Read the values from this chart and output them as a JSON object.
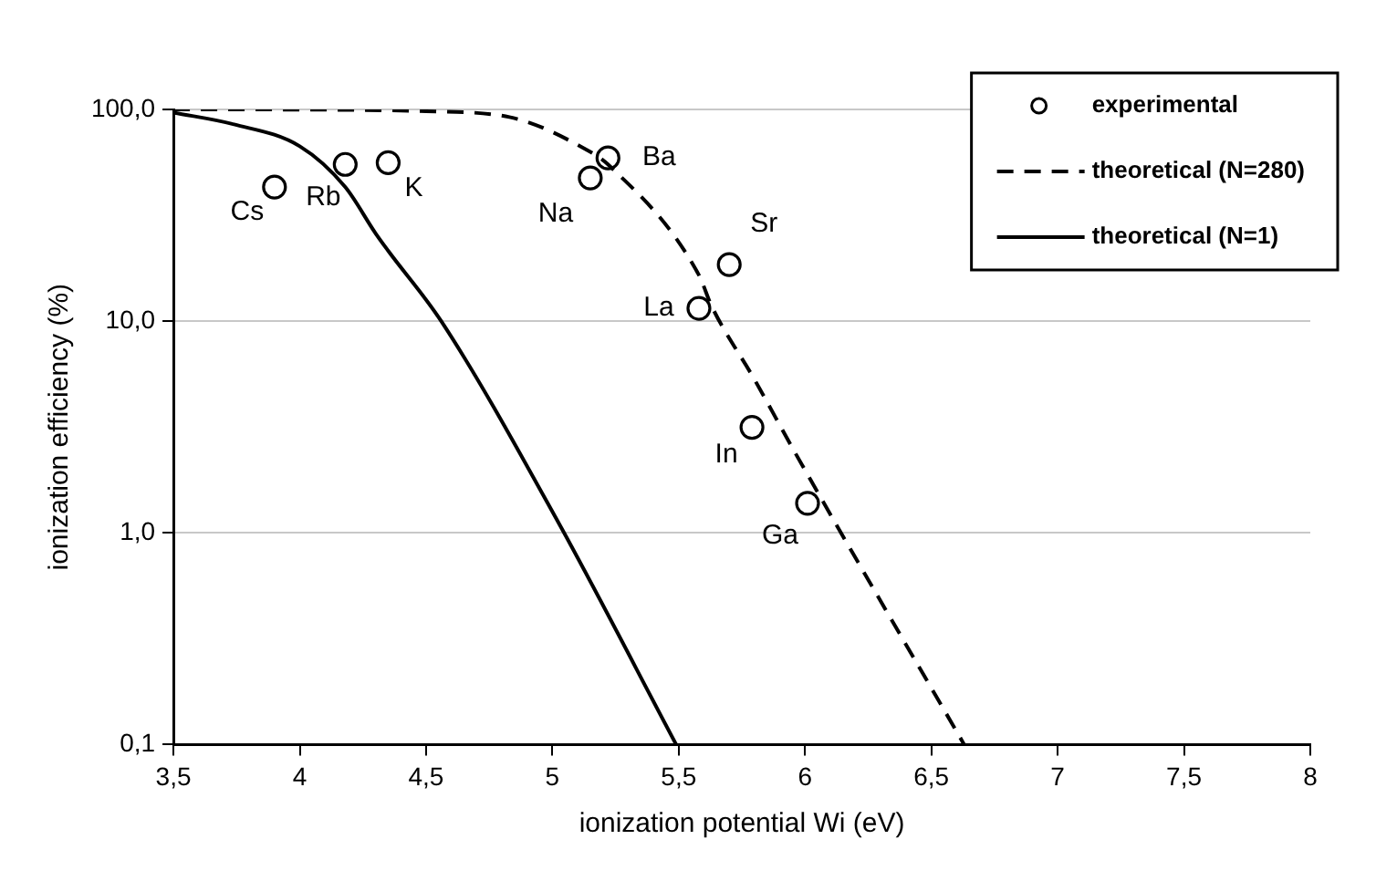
{
  "chart_data": {
    "type": "scatter",
    "xlabel": "ionization potential Wi (eV)",
    "ylabel": "ionization efficiency (%)",
    "xlim": [
      3.5,
      8
    ],
    "xticks": [
      {
        "value": 3.5,
        "label": "3,5"
      },
      4,
      {
        "value": 4.5,
        "label": "4,5"
      },
      5,
      {
        "value": 5.5,
        "label": "5,5"
      },
      6,
      {
        "value": 6.5,
        "label": "6,5"
      },
      7,
      {
        "value": 7.5,
        "label": "7,5"
      },
      8
    ],
    "ylim": [
      0.1,
      100
    ],
    "yticks": [
      {
        "value": 0.1,
        "label": "0,1"
      },
      {
        "value": 1,
        "label": "1,0"
      },
      {
        "value": 10,
        "label": "10,0"
      },
      {
        "value": 100,
        "label": "100,0"
      }
    ],
    "log": "y",
    "grid": "y",
    "legend": "top right",
    "series": [
      {
        "name": "experimental",
        "marker": "circle",
        "color": "#000000",
        "x": [
          3.9,
          4.18,
          4.35,
          5.15,
          5.22,
          5.7,
          5.58,
          5.79,
          6.01
        ],
        "values": [
          43,
          55,
          56,
          47.5,
          59,
          18.5,
          11.5,
          3.15,
          1.38
        ]
      },
      {
        "name": "theoretical (N=280)",
        "type": "line",
        "marker": "none",
        "line_style": "dashed",
        "color": "#000000",
        "x": [
          3.5,
          4.0,
          4.5,
          4.83,
          5.15,
          5.22,
          5.58,
          5.63,
          5.8,
          5.96,
          6.63
        ],
        "values": [
          100,
          99.8,
          98,
          92,
          63,
          55,
          16.5,
          11.8,
          5.3,
          2.4,
          0.1
        ]
      },
      {
        "name": "theoretical (N=1)",
        "type": "line",
        "marker": "none",
        "line_style": "solid",
        "color": "#000000",
        "x": [
          3.5,
          3.74,
          4.0,
          4.18,
          4.3,
          4.35,
          4.56,
          5.02,
          5.49
        ],
        "values": [
          96.7,
          85,
          67,
          43,
          26,
          21.5,
          10,
          1.14,
          0.1
        ]
      }
    ],
    "annotations": [
      {
        "text": "Cs",
        "x": 3.9,
        "y": 43
      },
      {
        "text": "Rb",
        "x": 4.18,
        "y": 55
      },
      {
        "text": "K",
        "x": 4.35,
        "y": 56
      },
      {
        "text": "Na",
        "x": 5.15,
        "y": 47.5
      },
      {
        "text": "Ba",
        "x": 5.22,
        "y": 59
      },
      {
        "text": "Sr",
        "x": 5.7,
        "y": 18.5
      },
      {
        "text": "La",
        "x": 5.58,
        "y": 11.5
      },
      {
        "text": "In",
        "x": 5.79,
        "y": 3.15
      },
      {
        "text": "Ga",
        "x": 6.01,
        "y": 1.38
      }
    ]
  }
}
